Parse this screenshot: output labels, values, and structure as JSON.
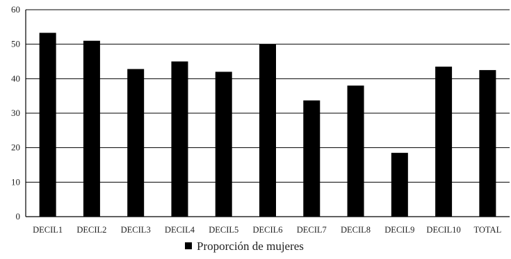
{
  "chart_data": {
    "type": "bar",
    "categories": [
      "DECIL1",
      "DECIL2",
      "DECIL3",
      "DECIL4",
      "DECIL5",
      "DECIL6",
      "DECIL7",
      "DECIL8",
      "DECIL9",
      "DECIL10",
      "TOTAL"
    ],
    "series": [
      {
        "name": "Proporción de mujeres",
        "values": [
          53.3,
          51.0,
          42.8,
          45.0,
          42.0,
          50.0,
          33.7,
          38.0,
          18.5,
          43.5,
          42.5
        ]
      }
    ],
    "yticks": [
      "0",
      "10",
      "20",
      "30",
      "40",
      "50",
      "60"
    ],
    "ylim": [
      0,
      60
    ],
    "grid": true,
    "legend_position": "bottom-center",
    "bar_color": "#000000",
    "title": "",
    "xlabel": "",
    "ylabel": ""
  }
}
